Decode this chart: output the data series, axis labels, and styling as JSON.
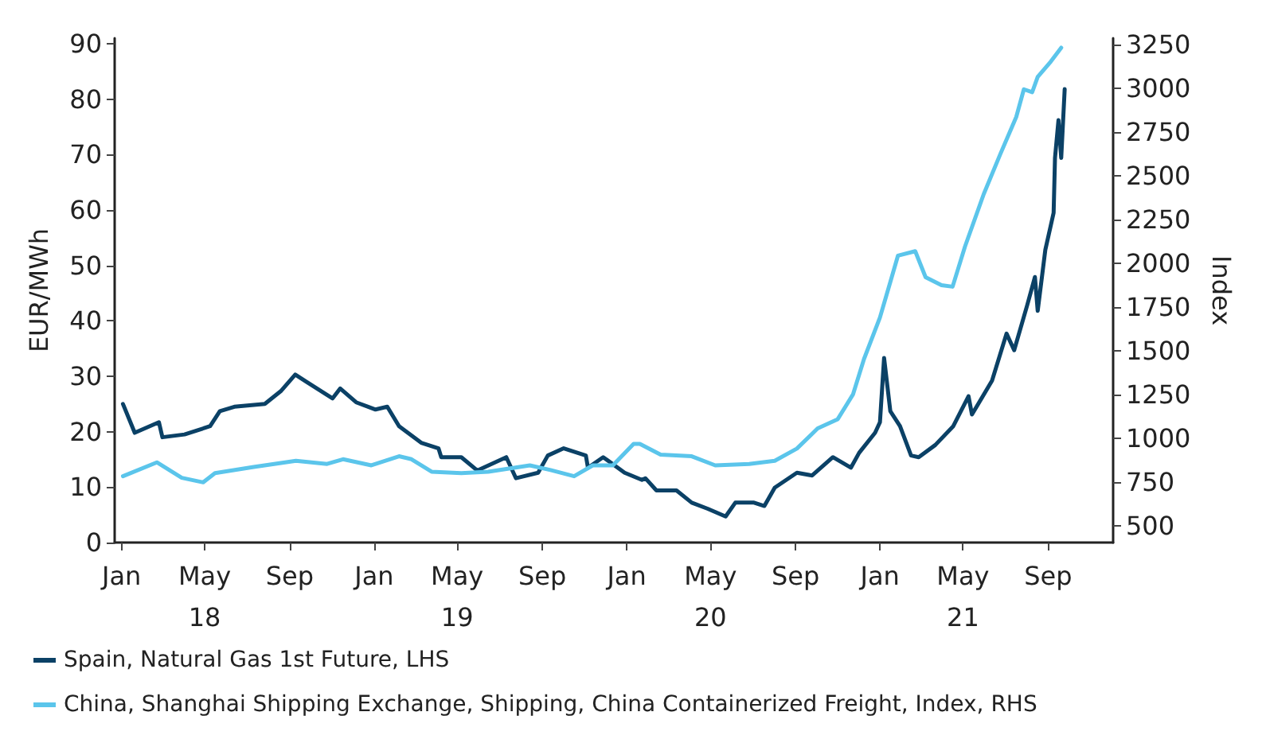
{
  "chart_data": {
    "type": "line",
    "ylabel": "EUR/MWh",
    "y2label": "Index",
    "xlim": [
      "2017-12-22",
      "2021-12-04"
    ],
    "xticks": [
      {
        "value": "2018-01-01",
        "label": "Jan"
      },
      {
        "value": "2018-05-01",
        "label": "May\n18"
      },
      {
        "value": "2018-09-01",
        "label": "Sep"
      },
      {
        "value": "2019-01-01",
        "label": "Jan"
      },
      {
        "value": "2019-05-01",
        "label": "May\n19"
      },
      {
        "value": "2019-09-01",
        "label": "Sep"
      },
      {
        "value": "2020-01-01",
        "label": "Jan"
      },
      {
        "value": "2020-05-01",
        "label": "May\n20"
      },
      {
        "value": "2020-09-01",
        "label": "Sep"
      },
      {
        "value": "2021-01-01",
        "label": "Jan"
      },
      {
        "value": "2021-05-01",
        "label": "May\n21"
      },
      {
        "value": "2021-09-01",
        "label": "Sep"
      }
    ],
    "ylim": [
      0,
      91
    ],
    "yticks": [
      0,
      10,
      20,
      30,
      40,
      50,
      60,
      70,
      80,
      90
    ],
    "y2lim": [
      403,
      3285
    ],
    "y2ticks": [
      500,
      750,
      1000,
      1250,
      1500,
      1750,
      2000,
      2250,
      2500,
      2750,
      3000,
      3250
    ],
    "grid": false,
    "legend": "bottom left",
    "marker": "none",
    "line_style": "solid",
    "series": [
      {
        "name": "Spain, Natural Gas 1st Future, LHS",
        "color": "#0b4166",
        "x": [
          "2018-01-03",
          "2018-01-20",
          "2018-02-24",
          "2018-03-01",
          "2018-04-02",
          "2018-05-09",
          "2018-05-23",
          "2018-06-13",
          "2018-07-27",
          "2018-08-19",
          "2018-09-09",
          "2018-09-25",
          "2018-11-02",
          "2018-11-13",
          "2018-12-06",
          "2019-01-03",
          "2019-01-20",
          "2019-02-06",
          "2019-03-10",
          "2019-04-04",
          "2019-04-08",
          "2019-05-07",
          "2019-05-30",
          "2019-07-11",
          "2019-07-25",
          "2019-08-26",
          "2019-09-09",
          "2019-10-02",
          "2019-11-03",
          "2019-11-06",
          "2019-11-28",
          "2019-12-29",
          "2020-01-23",
          "2020-01-28",
          "2020-02-13",
          "2020-03-13",
          "2020-04-04",
          "2020-04-27",
          "2020-05-23",
          "2020-06-06",
          "2020-07-03",
          "2020-07-18",
          "2020-08-02",
          "2020-09-03",
          "2020-09-25",
          "2020-10-25",
          "2020-11-20",
          "2020-12-02",
          "2020-12-25",
          "2021-01-01",
          "2021-01-07",
          "2021-01-16",
          "2021-01-30",
          "2021-02-15",
          "2021-02-26",
          "2021-03-22",
          "2021-04-17",
          "2021-05-09",
          "2021-05-14",
          "2021-06-12",
          "2021-07-03",
          "2021-07-14",
          "2021-08-02",
          "2021-08-13",
          "2021-08-17",
          "2021-08-28",
          "2021-09-09",
          "2021-09-11",
          "2021-09-16",
          "2021-09-20",
          "2021-09-25"
        ],
        "values": [
          25.0,
          19.8,
          21.7,
          19,
          19.5,
          21,
          23.7,
          24.5,
          25,
          27.3,
          30.3,
          29,
          26,
          27.8,
          25.3,
          24,
          24.5,
          21,
          18,
          17,
          15.4,
          15.4,
          13,
          15.4,
          11.6,
          12.6,
          15.7,
          17,
          15.7,
          13.5,
          15.4,
          12.6,
          11.3,
          11.6,
          9.4,
          9.4,
          7.2,
          6.1,
          4.7,
          7.2,
          7.2,
          6.6,
          9.9,
          12.6,
          12.1,
          15.4,
          13.5,
          16.2,
          19.8,
          21.7,
          33.3,
          23.7,
          21,
          15.7,
          15.4,
          17.6,
          21,
          26.4,
          23.1,
          29.2,
          37.7,
          34.7,
          42.9,
          47.9,
          41.8,
          52.8,
          59.5,
          69.4,
          76.2,
          69.4,
          81.8
        ]
      },
      {
        "name": "China, Shanghai Shipping Exchange, Shipping, China Containerized Freight, Index, RHS",
        "color": "#5bc5eb",
        "axis": "y2",
        "x": [
          "2018-01-03",
          "2018-02-21",
          "2018-03-29",
          "2018-04-29",
          "2018-05-16",
          "2018-07-11",
          "2018-09-10",
          "2018-10-25",
          "2018-11-17",
          "2018-12-28",
          "2019-02-06",
          "2019-02-24",
          "2019-03-25",
          "2019-05-07",
          "2019-06-15",
          "2019-08-14",
          "2019-09-13",
          "2019-10-17",
          "2019-11-13",
          "2019-12-12",
          "2020-01-11",
          "2020-01-20",
          "2020-02-19",
          "2020-04-04",
          "2020-05-08",
          "2020-06-26",
          "2020-08-02",
          "2020-09-03",
          "2020-10-03",
          "2020-11-01",
          "2020-11-23",
          "2020-12-09",
          "2021-01-01",
          "2021-01-16",
          "2021-01-27",
          "2021-02-21",
          "2021-03-08",
          "2021-03-31",
          "2021-04-16",
          "2021-05-04",
          "2021-05-31",
          "2021-06-24",
          "2021-07-17",
          "2021-07-28",
          "2021-08-09",
          "2021-08-17",
          "2021-09-05",
          "2021-09-20"
        ],
        "values": [
          782,
          861,
          773,
          747,
          800,
          835,
          870,
          852,
          879,
          844,
          896,
          879,
          808,
          800,
          808,
          844,
          817,
          782,
          844,
          844,
          967,
          967,
          905,
          896,
          844,
          852,
          870,
          940,
          1055,
          1108,
          1249,
          1452,
          1689,
          1892,
          2042,
          2068,
          1919,
          1874,
          1865,
          2095,
          2394,
          2623,
          2835,
          2993,
          2976,
          3064,
          3152,
          3231
        ]
      }
    ]
  }
}
